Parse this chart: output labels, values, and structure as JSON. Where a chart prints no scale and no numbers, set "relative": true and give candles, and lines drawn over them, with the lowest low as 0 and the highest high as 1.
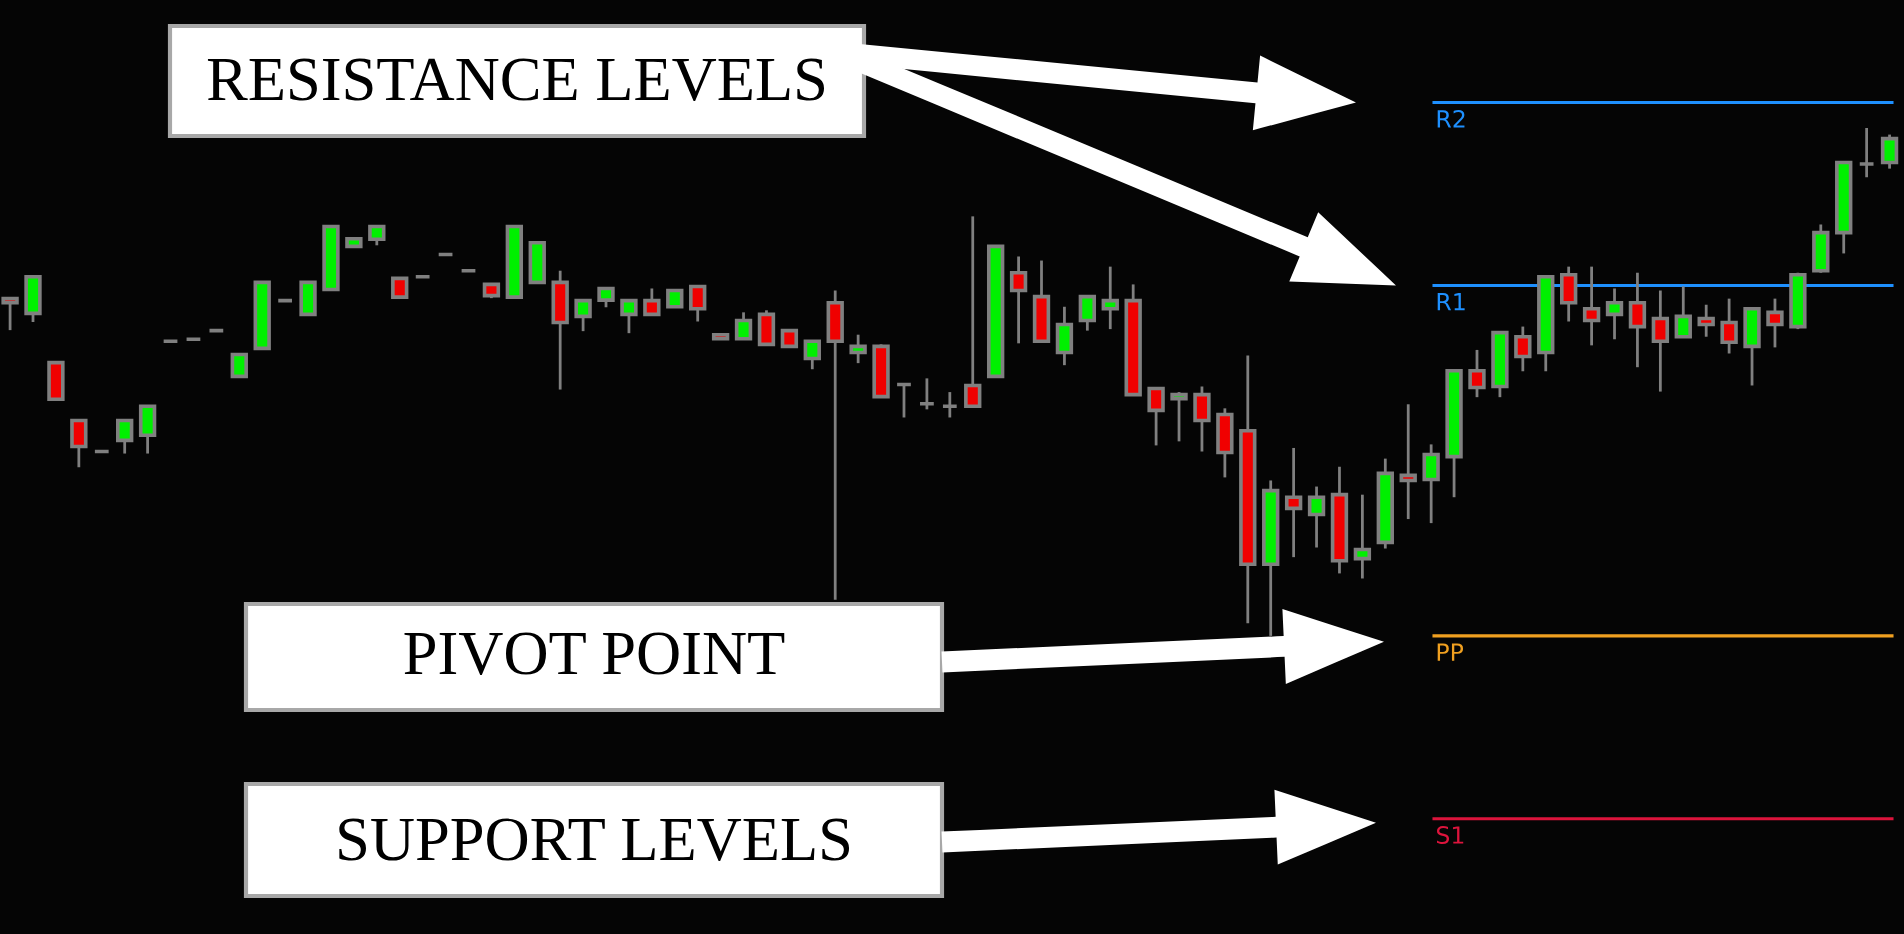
{
  "chart_data": {
    "type": "candlestick",
    "relative": true,
    "categories": [
      null,
      null,
      null,
      null,
      null,
      null,
      null,
      null,
      null,
      null,
      null,
      null,
      null,
      null,
      null,
      null,
      null,
      null,
      null,
      null,
      null,
      null,
      null,
      null,
      null,
      null,
      null,
      null,
      null,
      null,
      null,
      null,
      null,
      null,
      null,
      null,
      null,
      null,
      null,
      null,
      null,
      null,
      null,
      null,
      null,
      null,
      null,
      null,
      null,
      null,
      null,
      null,
      null,
      null,
      null,
      null,
      null,
      null,
      null,
      null,
      null,
      null,
      null,
      null,
      null,
      null,
      null,
      null,
      null,
      null,
      null,
      null,
      null,
      null,
      null,
      null,
      null,
      null,
      null,
      null,
      null,
      null,
      null
    ],
    "ohlc": [
      [
        0.664,
        0.664,
        0.602,
        0.656
      ],
      [
        0.635,
        0.707,
        0.618,
        0.707
      ],
      [
        0.538,
        0.538,
        0.466,
        0.466
      ],
      [
        0.424,
        0.424,
        0.332,
        0.373
      ],
      [
        0.363,
        0.363,
        0.363,
        0.363
      ],
      [
        0.385,
        0.424,
        0.359,
        0.424
      ],
      [
        0.395,
        0.452,
        0.359,
        0.452
      ],
      [
        0.58,
        0.58,
        0.58,
        0.58
      ],
      [
        0.584,
        0.584,
        0.584,
        0.584
      ],
      [
        0.601,
        0.601,
        0.601,
        0.601
      ],
      [
        0.511,
        0.554,
        0.511,
        0.554
      ],
      [
        0.566,
        0.696,
        0.566,
        0.696
      ],
      [
        0.66,
        0.66,
        0.66,
        0.66
      ],
      [
        0.633,
        0.696,
        0.633,
        0.696
      ],
      [
        0.682,
        0.806,
        0.682,
        0.806
      ],
      [
        0.767,
        0.782,
        0.767,
        0.782
      ],
      [
        0.781,
        0.806,
        0.769,
        0.806
      ],
      [
        0.704,
        0.704,
        0.667,
        0.667
      ],
      [
        0.707,
        0.707,
        0.707,
        0.707
      ],
      [
        0.751,
        0.751,
        0.751,
        0.751
      ],
      [
        0.719,
        0.719,
        0.719,
        0.719
      ],
      [
        0.692,
        0.692,
        0.665,
        0.67
      ],
      [
        0.667,
        0.806,
        0.667,
        0.806
      ],
      [
        0.696,
        0.774,
        0.696,
        0.774
      ],
      [
        0.696,
        0.719,
        0.485,
        0.617
      ],
      [
        0.629,
        0.66,
        0.6,
        0.66
      ],
      [
        0.661,
        0.684,
        0.647,
        0.684
      ],
      [
        0.633,
        0.66,
        0.596,
        0.66
      ],
      [
        0.66,
        0.684,
        0.633,
        0.633
      ],
      [
        0.648,
        0.68,
        0.648,
        0.68
      ],
      [
        0.688,
        0.688,
        0.619,
        0.644
      ],
      [
        0.593,
        0.593,
        0.585,
        0.585
      ],
      [
        0.585,
        0.637,
        0.585,
        0.621
      ],
      [
        0.633,
        0.641,
        0.574,
        0.574
      ],
      [
        0.601,
        0.601,
        0.57,
        0.57
      ],
      [
        0.546,
        0.58,
        0.525,
        0.58
      ],
      [
        0.656,
        0.68,
        0.071,
        0.58
      ],
      [
        0.558,
        0.593,
        0.537,
        0.57
      ],
      [
        0.57,
        0.574,
        0.471,
        0.471
      ],
      [
        0.495,
        0.495,
        0.43,
        0.495
      ],
      [
        0.457,
        0.507,
        0.446,
        0.457
      ],
      [
        0.452,
        0.48,
        0.43,
        0.452
      ],
      [
        0.493,
        0.826,
        0.452,
        0.452
      ],
      [
        0.511,
        0.767,
        0.511,
        0.767
      ],
      [
        0.715,
        0.747,
        0.576,
        0.68
      ],
      [
        0.668,
        0.739,
        0.58,
        0.58
      ],
      [
        0.558,
        0.648,
        0.533,
        0.613
      ],
      [
        0.621,
        0.668,
        0.601,
        0.668
      ],
      [
        0.644,
        0.727,
        0.604,
        0.66
      ],
      [
        0.66,
        0.692,
        0.475,
        0.475
      ],
      [
        0.487,
        0.487,
        0.375,
        0.444
      ],
      [
        0.467,
        0.48,
        0.383,
        0.475
      ],
      [
        0.475,
        0.491,
        0.363,
        0.424
      ],
      [
        0.436,
        0.448,
        0.312,
        0.361
      ],
      [
        0.404,
        0.552,
        0.025,
        0.141
      ],
      [
        0.141,
        0.306,
        0,
        0.286
      ],
      [
        0.273,
        0.37,
        0.155,
        0.251
      ],
      [
        0.239,
        0.294,
        0.174,
        0.273
      ],
      [
        0.278,
        0.333,
        0.123,
        0.148
      ],
      [
        0.152,
        0.278,
        0.113,
        0.17
      ],
      [
        0.184,
        0.349,
        0.172,
        0.32
      ],
      [
        0.316,
        0.456,
        0.23,
        0.306
      ],
      [
        0.308,
        0.377,
        0.222,
        0.357
      ],
      [
        0.353,
        0.522,
        0.273,
        0.522
      ],
      [
        0.522,
        0.563,
        0.47,
        0.489
      ],
      [
        0.491,
        0.597,
        0.47,
        0.597
      ],
      [
        0.589,
        0.609,
        0.521,
        0.55
      ],
      [
        0.558,
        0.707,
        0.521,
        0.707
      ],
      [
        0.711,
        0.727,
        0.619,
        0.656
      ],
      [
        0.644,
        0.727,
        0.572,
        0.621
      ],
      [
        0.633,
        0.684,
        0.584,
        0.656
      ],
      [
        0.656,
        0.715,
        0.529,
        0.609
      ],
      [
        0.625,
        0.68,
        0.481,
        0.58
      ],
      [
        0.589,
        0.688,
        0.589,
        0.629
      ],
      [
        0.625,
        0.652,
        0.589,
        0.613
      ],
      [
        0.617,
        0.664,
        0.556,
        0.578
      ],
      [
        0.57,
        0.644,
        0.493,
        0.644
      ],
      [
        0.637,
        0.664,
        0.568,
        0.613
      ],
      [
        0.609,
        0.715,
        0.604,
        0.711
      ],
      [
        0.719,
        0.81,
        0.715,
        0.794
      ],
      [
        0.794,
        0.932,
        0.753,
        0.932
      ],
      [
        0.929,
        1,
        0.903,
        0.929
      ],
      [
        0.932,
        0.987,
        0.92,
        0.979
      ]
    ],
    "colors": [
      "#f00000",
      "#00f000",
      "#f00000",
      "#f00000",
      "#808080",
      "#00f000",
      "#00f000",
      "#808080",
      "#808080",
      "#808080",
      "#00f000",
      "#00f000",
      "#808080",
      "#00f000",
      "#00f000",
      "#00f000",
      "#00f000",
      "#f00000",
      "#808080",
      "#808080",
      "#808080",
      "#f00000",
      "#00f000",
      "#00f000",
      "#f00000",
      "#00f000",
      "#00f000",
      "#00f000",
      "#f00000",
      "#00f000",
      "#f00000",
      "#f00000",
      "#00f000",
      "#f00000",
      "#f00000",
      "#00f000",
      "#f00000",
      "#00f000",
      "#f00000",
      "#808080",
      "#808080",
      "#808080",
      "#f00000",
      "#00f000",
      "#f00000",
      "#f00000",
      "#00f000",
      "#00f000",
      "#00f000",
      "#f00000",
      "#f00000",
      "#00f000",
      "#f00000",
      "#f00000",
      "#f00000",
      "#00f000",
      "#f00000",
      "#00f000",
      "#f00000",
      "#00f000",
      "#00f000",
      "#f00000",
      "#00f000",
      "#00f000",
      "#f00000",
      "#00f000",
      "#f00000",
      "#00f000",
      "#f00000",
      "#f00000",
      "#00f000",
      "#f00000",
      "#f00000",
      "#00f000",
      "#f00000",
      "#f00000",
      "#00f000",
      "#f00000",
      "#00f000",
      "#00f000",
      "#00f000",
      "#808080",
      "#00f000"
    ],
    "ref_lines": [
      {
        "axis": "y",
        "value": 1.05,
        "label": "R2",
        "color": "#1e90ff"
      },
      {
        "axis": "y",
        "value": 0.69,
        "label": "R1",
        "color": "#1e90ff"
      },
      {
        "axis": "y",
        "value": 0,
        "label": "PP",
        "color": "#f0a020"
      },
      {
        "axis": "y",
        "value": -0.36,
        "label": "S1",
        "color": "#dc143c"
      }
    ],
    "annotations": [
      "RESISTANCE LEVELS",
      "PIVOT POINT",
      "SUPPORT LEVELS"
    ]
  }
}
